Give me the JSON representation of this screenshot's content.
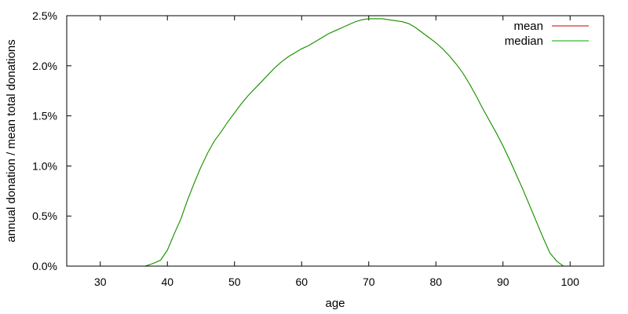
{
  "chart_data": {
    "type": "line",
    "xlabel": "age",
    "ylabel": "annual donation / mean total donations",
    "xlim": [
      25,
      105
    ],
    "ylim": [
      0,
      2.5
    ],
    "x_ticks": [
      30,
      40,
      50,
      60,
      70,
      80,
      90,
      100
    ],
    "y_ticks": [
      0,
      0.5,
      1.0,
      1.5,
      2.0,
      2.5
    ],
    "y_tick_labels": [
      "0.0%",
      "0.5%",
      "1.0%",
      "1.5%",
      "2.0%",
      "2.5%"
    ],
    "grid": false,
    "legend_position": "top-right",
    "series": [
      {
        "name": "mean",
        "color": "#cc0000",
        "x": [
          36.7,
          38,
          39,
          40,
          41,
          42,
          43,
          44,
          45,
          46,
          47,
          48,
          49,
          50,
          51,
          52,
          53,
          54,
          55,
          56,
          57,
          58,
          59,
          60,
          61,
          62,
          63,
          64,
          65,
          66,
          67,
          68,
          69,
          70,
          71,
          72,
          73,
          74,
          75,
          76,
          77,
          78,
          79,
          80,
          81,
          82,
          83,
          84,
          85,
          86,
          87,
          88,
          89,
          90,
          91,
          92,
          93,
          94,
          95,
          96,
          97,
          98,
          99,
          100
        ],
        "y": [
          0.0,
          0.03,
          0.06,
          0.16,
          0.32,
          0.47,
          0.66,
          0.83,
          0.99,
          1.13,
          1.25,
          1.34,
          1.44,
          1.53,
          1.62,
          1.7,
          1.77,
          1.84,
          1.91,
          1.98,
          2.04,
          2.09,
          2.13,
          2.17,
          2.2,
          2.24,
          2.28,
          2.32,
          2.35,
          2.38,
          2.41,
          2.44,
          2.46,
          2.47,
          2.47,
          2.47,
          2.46,
          2.45,
          2.44,
          2.42,
          2.38,
          2.33,
          2.28,
          2.23,
          2.17,
          2.1,
          2.02,
          1.93,
          1.82,
          1.7,
          1.57,
          1.45,
          1.33,
          1.2,
          1.06,
          0.91,
          0.76,
          0.6,
          0.44,
          0.28,
          0.13,
          0.05,
          0.0,
          0.0
        ]
      },
      {
        "name": "median",
        "color": "#00aa00",
        "x": [
          36.7,
          38,
          39,
          40,
          41,
          42,
          43,
          44,
          45,
          46,
          47,
          48,
          49,
          50,
          51,
          52,
          53,
          54,
          55,
          56,
          57,
          58,
          59,
          60,
          61,
          62,
          63,
          64,
          65,
          66,
          67,
          68,
          69,
          70,
          71,
          72,
          73,
          74,
          75,
          76,
          77,
          78,
          79,
          80,
          81,
          82,
          83,
          84,
          85,
          86,
          87,
          88,
          89,
          90,
          91,
          92,
          93,
          94,
          95,
          96,
          97,
          98,
          99,
          100
        ],
        "y": [
          0.0,
          0.03,
          0.06,
          0.16,
          0.32,
          0.47,
          0.66,
          0.83,
          0.99,
          1.13,
          1.25,
          1.34,
          1.44,
          1.53,
          1.62,
          1.7,
          1.77,
          1.84,
          1.91,
          1.98,
          2.04,
          2.09,
          2.13,
          2.17,
          2.2,
          2.24,
          2.28,
          2.32,
          2.35,
          2.38,
          2.41,
          2.44,
          2.46,
          2.47,
          2.47,
          2.47,
          2.46,
          2.45,
          2.44,
          2.42,
          2.38,
          2.33,
          2.28,
          2.23,
          2.17,
          2.1,
          2.02,
          1.93,
          1.82,
          1.7,
          1.57,
          1.45,
          1.33,
          1.2,
          1.06,
          0.91,
          0.76,
          0.6,
          0.44,
          0.28,
          0.13,
          0.05,
          0.0,
          0.0
        ]
      }
    ]
  }
}
